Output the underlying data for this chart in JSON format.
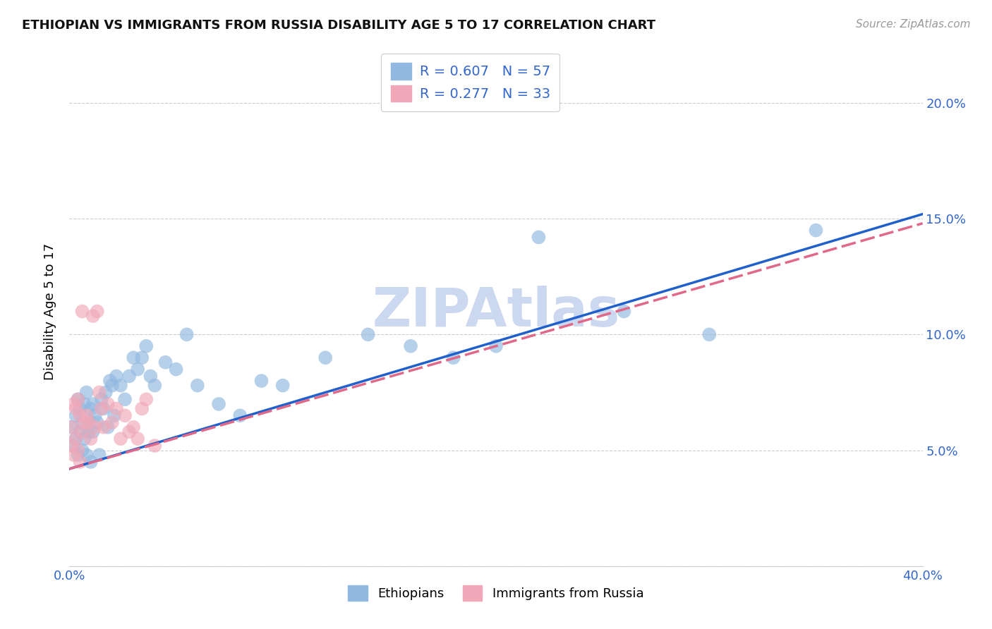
{
  "title": "ETHIOPIAN VS IMMIGRANTS FROM RUSSIA DISABILITY AGE 5 TO 17 CORRELATION CHART",
  "source": "Source: ZipAtlas.com",
  "ylabel": "Disability Age 5 to 17",
  "xlim": [
    0.0,
    0.4
  ],
  "ylim": [
    0.0,
    0.22
  ],
  "y_ticks": [
    0.0,
    0.05,
    0.1,
    0.15,
    0.2
  ],
  "y_tick_labels": [
    "",
    "5.0%",
    "10.0%",
    "15.0%",
    "20.0%"
  ],
  "legend_r1": "R = 0.607",
  "legend_n1": "N = 57",
  "legend_r2": "R = 0.277",
  "legend_n2": "N = 33",
  "legend_label1": "Ethiopians",
  "legend_label2": "Immigrants from Russia",
  "blue_scatter": "#90b8e0",
  "pink_scatter": "#f0a8b8",
  "blue_line": "#2060cc",
  "pink_line": "#e06888",
  "grid_color": "#cccccc",
  "watermark_color": "#ccd8f0",
  "title_color": "#111111",
  "source_color": "#999999",
  "tick_color": "#3366cc",
  "ethiopian_x": [
    0.001,
    0.002,
    0.003,
    0.003,
    0.004,
    0.004,
    0.005,
    0.005,
    0.006,
    0.006,
    0.007,
    0.007,
    0.008,
    0.008,
    0.009,
    0.009,
    0.01,
    0.01,
    0.011,
    0.011,
    0.012,
    0.013,
    0.014,
    0.015,
    0.016,
    0.017,
    0.018,
    0.019,
    0.02,
    0.021,
    0.022,
    0.024,
    0.026,
    0.028,
    0.03,
    0.032,
    0.034,
    0.036,
    0.038,
    0.04,
    0.045,
    0.05,
    0.055,
    0.06,
    0.07,
    0.08,
    0.09,
    0.1,
    0.12,
    0.14,
    0.16,
    0.18,
    0.2,
    0.22,
    0.26,
    0.3,
    0.35
  ],
  "ethiopian_y": [
    0.06,
    0.052,
    0.055,
    0.065,
    0.048,
    0.072,
    0.058,
    0.068,
    0.05,
    0.062,
    0.055,
    0.07,
    0.048,
    0.075,
    0.063,
    0.058,
    0.045,
    0.068,
    0.07,
    0.058,
    0.065,
    0.062,
    0.048,
    0.072,
    0.068,
    0.075,
    0.06,
    0.08,
    0.078,
    0.065,
    0.082,
    0.078,
    0.072,
    0.082,
    0.09,
    0.085,
    0.09,
    0.095,
    0.082,
    0.078,
    0.088,
    0.085,
    0.1,
    0.078,
    0.07,
    0.065,
    0.08,
    0.078,
    0.09,
    0.1,
    0.095,
    0.09,
    0.095,
    0.142,
    0.11,
    0.1,
    0.145
  ],
  "russia_x": [
    0.001,
    0.001,
    0.002,
    0.002,
    0.003,
    0.003,
    0.004,
    0.004,
    0.005,
    0.005,
    0.006,
    0.006,
    0.007,
    0.008,
    0.009,
    0.01,
    0.011,
    0.012,
    0.013,
    0.014,
    0.015,
    0.016,
    0.018,
    0.02,
    0.022,
    0.024,
    0.026,
    0.028,
    0.03,
    0.032,
    0.034,
    0.036,
    0.04
  ],
  "russia_y": [
    0.052,
    0.06,
    0.048,
    0.07,
    0.055,
    0.068,
    0.05,
    0.072,
    0.045,
    0.065,
    0.11,
    0.058,
    0.062,
    0.065,
    0.062,
    0.055,
    0.108,
    0.06,
    0.11,
    0.075,
    0.068,
    0.06,
    0.07,
    0.062,
    0.068,
    0.055,
    0.065,
    0.058,
    0.06,
    0.055,
    0.068,
    0.072,
    0.052
  ],
  "line_x_start": 0.0,
  "line_x_end": 0.4,
  "eth_line_y_start": 0.042,
  "eth_line_y_end": 0.152,
  "rus_line_y_start": 0.042,
  "rus_line_y_end": 0.148
}
